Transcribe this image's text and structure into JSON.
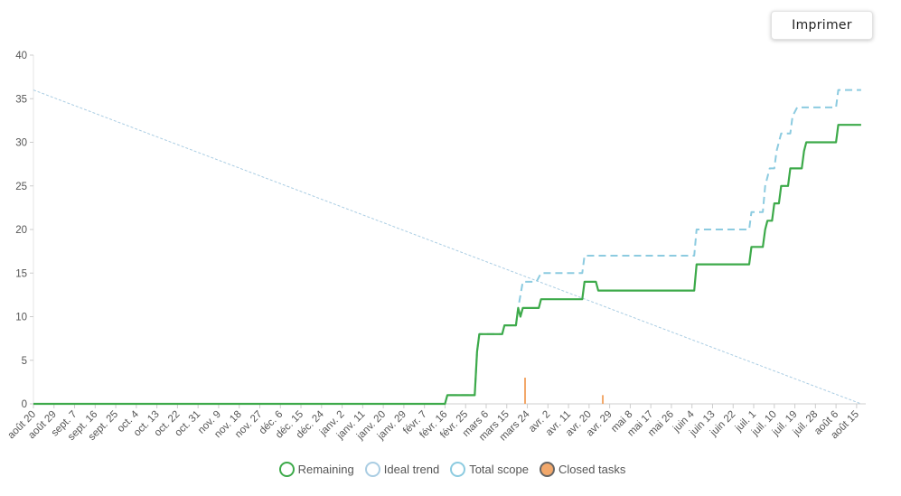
{
  "toolbar": {
    "print_label": "Imprimer"
  },
  "chart_data": {
    "type": "line",
    "title": "",
    "xlabel": "",
    "ylabel": "",
    "ylim": [
      0,
      40
    ],
    "yticks": [
      0,
      5,
      10,
      15,
      20,
      25,
      30,
      35,
      40
    ],
    "x_tick_labels": [
      "août 20",
      "août 29",
      "sept. 7",
      "sept. 16",
      "sept. 25",
      "oct. 4",
      "oct. 13",
      "oct. 22",
      "oct. 31",
      "nov. 9",
      "nov. 18",
      "nov. 27",
      "déc. 6",
      "déc. 15",
      "déc. 24",
      "janv. 2",
      "janv. 11",
      "janv. 20",
      "janv. 29",
      "févr. 7",
      "févr. 16",
      "févr. 25",
      "mars 6",
      "mars 15",
      "mars 24",
      "avr. 2",
      "avr. 11",
      "avr. 20",
      "avr. 29",
      "mai 8",
      "mai 17",
      "mai 26",
      "juin 4",
      "juin 13",
      "juin 22",
      "juil. 1",
      "juil. 10",
      "juil. 19",
      "juil. 28",
      "août 6",
      "août 15"
    ],
    "tick_interval_days": 9,
    "x_range_days": [
      0,
      364
    ],
    "legend_position": "bottom",
    "series": [
      {
        "name": "Remaining",
        "color": "#3daa4a",
        "style": "solid",
        "points": [
          [
            0,
            0
          ],
          [
            180,
            0
          ],
          [
            181,
            1
          ],
          [
            193,
            1
          ],
          [
            194,
            6
          ],
          [
            195,
            8
          ],
          [
            205,
            8
          ],
          [
            206,
            9
          ],
          [
            211,
            9
          ],
          [
            212,
            11
          ],
          [
            213,
            10
          ],
          [
            214,
            11
          ],
          [
            221,
            11
          ],
          [
            222,
            12
          ],
          [
            240,
            12
          ],
          [
            241,
            14
          ],
          [
            246,
            14
          ],
          [
            247,
            13
          ],
          [
            289,
            13
          ],
          [
            290,
            16
          ],
          [
            313,
            16
          ],
          [
            314,
            18
          ],
          [
            319,
            18
          ],
          [
            320,
            20
          ],
          [
            321,
            21
          ],
          [
            323,
            21
          ],
          [
            324,
            23
          ],
          [
            326,
            23
          ],
          [
            327,
            25
          ],
          [
            330,
            25
          ],
          [
            331,
            27
          ],
          [
            336,
            27
          ],
          [
            337,
            29
          ],
          [
            338,
            30
          ],
          [
            351,
            30
          ],
          [
            352,
            32
          ],
          [
            362,
            32
          ]
        ]
      },
      {
        "name": "Ideal trend",
        "color": "#aacde3",
        "style": "thin-dashed",
        "points": [
          [
            0,
            36
          ],
          [
            362,
            0
          ]
        ]
      },
      {
        "name": "Total scope",
        "color": "#8ccbe0",
        "style": "dashed",
        "points": [
          [
            0,
            0
          ],
          [
            180,
            0
          ],
          [
            181,
            1
          ],
          [
            193,
            1
          ],
          [
            194,
            6
          ],
          [
            195,
            8
          ],
          [
            205,
            8
          ],
          [
            206,
            9
          ],
          [
            211,
            9
          ],
          [
            212,
            11
          ],
          [
            214,
            14
          ],
          [
            220,
            14
          ],
          [
            222,
            15
          ],
          [
            240,
            15
          ],
          [
            241,
            17
          ],
          [
            289,
            17
          ],
          [
            290,
            20
          ],
          [
            313,
            20
          ],
          [
            314,
            22
          ],
          [
            319,
            22
          ],
          [
            320,
            25
          ],
          [
            322,
            27
          ],
          [
            324,
            27
          ],
          [
            325,
            29
          ],
          [
            327,
            31
          ],
          [
            331,
            31
          ],
          [
            332,
            33
          ],
          [
            334,
            34
          ],
          [
            351,
            34
          ],
          [
            352,
            36
          ],
          [
            362,
            36
          ]
        ]
      },
      {
        "name": "Closed tasks",
        "color": "#f2a86b",
        "style": "bar",
        "points": [
          [
            215,
            3
          ],
          [
            249,
            1
          ]
        ]
      }
    ]
  }
}
